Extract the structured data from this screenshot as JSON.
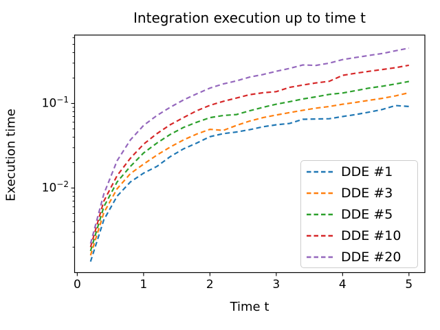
{
  "figure": {
    "title": "Integration execution up to time t",
    "xlabel": "Time t",
    "ylabel": "Execution time"
  },
  "chart_data": {
    "type": "line",
    "yscale": "log",
    "grid": false,
    "title": "Integration execution up to time t",
    "xlabel": "Time t",
    "ylabel": "Execution time",
    "xlim": [
      -0.04,
      5.24
    ],
    "ylim": [
      0.001,
      0.644
    ],
    "x_ticks": [
      0,
      1,
      2,
      3,
      4,
      5
    ],
    "y_tick_exponents": [
      -1,
      -2
    ],
    "legend_position": "lower right",
    "linestyle": "dashed",
    "x": [
      0.2,
      0.4,
      0.6,
      0.8,
      1.0,
      1.2,
      1.4,
      1.6,
      1.8,
      2.0,
      2.2,
      2.4,
      2.6,
      2.8,
      3.0,
      3.2,
      3.4,
      3.6,
      3.8,
      4.0,
      4.2,
      4.4,
      4.6,
      4.8,
      5.0
    ],
    "series": [
      {
        "name": "DDE #1",
        "color": "#1f77b4",
        "values": [
          0.00135,
          0.0042,
          0.008,
          0.0118,
          0.015,
          0.018,
          0.0235,
          0.029,
          0.034,
          0.0405,
          0.044,
          0.046,
          0.049,
          0.053,
          0.056,
          0.058,
          0.065,
          0.0655,
          0.066,
          0.07,
          0.074,
          0.079,
          0.085,
          0.0945,
          0.092
        ]
      },
      {
        "name": "DDE #3",
        "color": "#ff7f0e",
        "values": [
          0.0016,
          0.0051,
          0.0098,
          0.0148,
          0.0192,
          0.0245,
          0.0305,
          0.037,
          0.0435,
          0.0495,
          0.048,
          0.055,
          0.062,
          0.068,
          0.073,
          0.078,
          0.083,
          0.088,
          0.092,
          0.098,
          0.103,
          0.109,
          0.115,
          0.123,
          0.134
        ]
      },
      {
        "name": "DDE #5",
        "color": "#2ca02c",
        "values": [
          0.0018,
          0.006,
          0.0118,
          0.018,
          0.026,
          0.034,
          0.043,
          0.052,
          0.06,
          0.068,
          0.072,
          0.074,
          0.082,
          0.09,
          0.098,
          0.105,
          0.113,
          0.12,
          0.128,
          0.133,
          0.142,
          0.152,
          0.16,
          0.17,
          0.182
        ]
      },
      {
        "name": "DDE #10",
        "color": "#d62728",
        "values": [
          0.002,
          0.007,
          0.014,
          0.0225,
          0.033,
          0.044,
          0.056,
          0.068,
          0.082,
          0.095,
          0.106,
          0.116,
          0.127,
          0.134,
          0.138,
          0.155,
          0.165,
          0.175,
          0.183,
          0.215,
          0.228,
          0.24,
          0.252,
          0.265,
          0.283
        ]
      },
      {
        "name": "DDE #20",
        "color": "#9467bd",
        "values": [
          0.0022,
          0.0085,
          0.021,
          0.037,
          0.055,
          0.072,
          0.09,
          0.11,
          0.13,
          0.152,
          0.17,
          0.185,
          0.205,
          0.22,
          0.24,
          0.26,
          0.285,
          0.282,
          0.3,
          0.33,
          0.35,
          0.37,
          0.39,
          0.42,
          0.451
        ]
      }
    ]
  }
}
